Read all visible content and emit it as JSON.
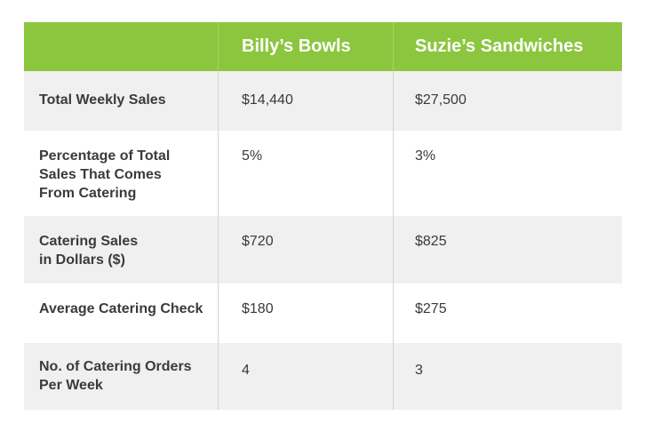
{
  "table": {
    "header": [
      "",
      "Billy’s Bowls",
      "Suzie’s Sandwiches"
    ],
    "rows": [
      {
        "label": "Total Weekly Sales",
        "billys": "$14,440",
        "suzies": "$27,500"
      },
      {
        "label": "Percentage of Total Sales That Comes From Catering",
        "billys": "5%",
        "suzies": "3%"
      },
      {
        "label": "Catering Sales in Dollars ($)",
        "billys": "$720",
        "suzies": "$825"
      },
      {
        "label": "Average Catering Check",
        "billys": "$180",
        "suzies": "$275"
      },
      {
        "label": "No. of Catering Orders Per Week",
        "billys": "4",
        "suzies": "3"
      }
    ]
  }
}
